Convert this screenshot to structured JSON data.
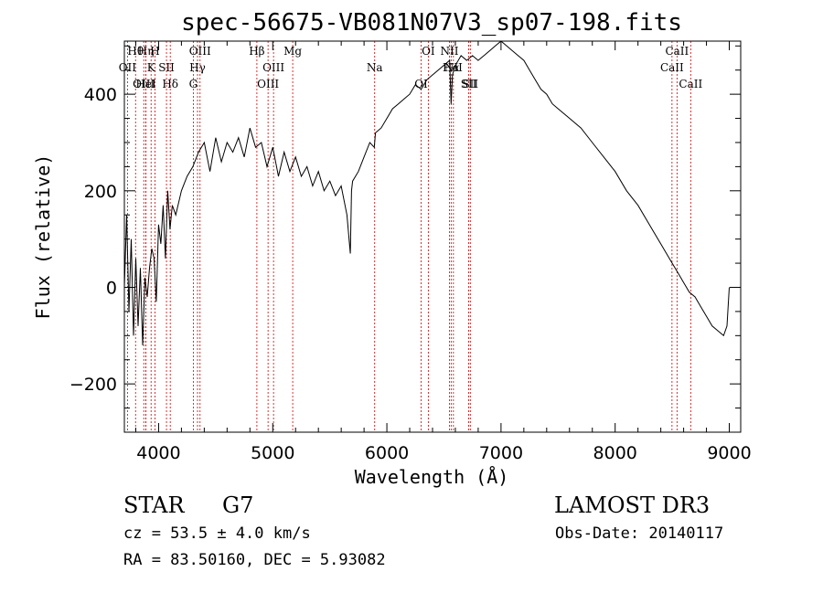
{
  "chart_data": {
    "type": "line",
    "title": "spec-56675-VB081N07V3_sp07-198.fits",
    "xlabel": "Wavelength (Å)",
    "ylabel": "Flux (relative)",
    "xlim": [
      3700,
      9100
    ],
    "ylim": [
      -300,
      510
    ],
    "xticks": [
      4000,
      5000,
      6000,
      7000,
      8000,
      9000
    ],
    "yticks": [
      -200,
      0,
      200,
      400
    ],
    "series": [
      {
        "name": "flux",
        "x": [
          3700,
          3720,
          3740,
          3760,
          3780,
          3800,
          3820,
          3840,
          3860,
          3880,
          3900,
          3920,
          3940,
          3960,
          3980,
          4000,
          4020,
          4040,
          4060,
          4080,
          4100,
          4120,
          4150,
          4200,
          4250,
          4300,
          4350,
          4400,
          4450,
          4500,
          4550,
          4600,
          4650,
          4700,
          4750,
          4800,
          4850,
          4900,
          4950,
          5000,
          5050,
          5100,
          5150,
          5200,
          5250,
          5300,
          5350,
          5400,
          5450,
          5500,
          5550,
          5600,
          5650,
          5680,
          5690,
          5700,
          5750,
          5800,
          5850,
          5890,
          5900,
          5950,
          6000,
          6050,
          6100,
          6150,
          6200,
          6250,
          6300,
          6350,
          6400,
          6450,
          6500,
          6550,
          6563,
          6575,
          6600,
          6650,
          6700,
          6750,
          6800,
          6850,
          6900,
          6950,
          7000,
          7050,
          7100,
          7150,
          7200,
          7250,
          7300,
          7350,
          7400,
          7450,
          7500,
          7600,
          7700,
          7800,
          7900,
          8000,
          8100,
          8200,
          8300,
          8400,
          8500,
          8550,
          8600,
          8650,
          8700,
          8750,
          8800,
          8850,
          8900,
          8950,
          8980,
          9000
        ],
        "values": [
          0,
          150,
          -50,
          100,
          -100,
          60,
          -80,
          40,
          -120,
          20,
          -20,
          40,
          80,
          60,
          -30,
          130,
          90,
          170,
          60,
          200,
          120,
          170,
          150,
          200,
          230,
          250,
          280,
          300,
          240,
          310,
          260,
          300,
          280,
          310,
          270,
          330,
          290,
          300,
          250,
          290,
          230,
          280,
          240,
          270,
          230,
          250,
          210,
          240,
          200,
          220,
          190,
          210,
          150,
          70,
          200,
          220,
          240,
          270,
          300,
          290,
          320,
          330,
          350,
          370,
          380,
          390,
          400,
          420,
          410,
          430,
          440,
          450,
          460,
          470,
          380,
          440,
          460,
          480,
          470,
          480,
          470,
          480,
          490,
          500,
          510,
          500,
          490,
          480,
          470,
          450,
          430,
          410,
          400,
          380,
          370,
          350,
          330,
          300,
          270,
          240,
          200,
          170,
          130,
          90,
          50,
          30,
          10,
          -10,
          -20,
          -40,
          -60,
          -80,
          -90,
          -100,
          -80,
          0
        ]
      }
    ],
    "spectral_lines": [
      {
        "label": "Hθ",
        "wavelength": 3798
      },
      {
        "label": "OII",
        "wavelength": 3727
      },
      {
        "label": "OIII",
        "wavelength": 3870
      },
      {
        "label": "Hη",
        "wavelength": 3889
      },
      {
        "label": "K",
        "wavelength": 3934
      },
      {
        "label": "HeI",
        "wavelength": 3889
      },
      {
        "label": "H",
        "wavelength": 3968
      },
      {
        "label": "SII",
        "wavelength": 4069
      },
      {
        "label": "Hδ",
        "wavelength": 4102
      },
      {
        "label": "OIII",
        "wavelength": 4363
      },
      {
        "label": "Hγ",
        "wavelength": 4341
      },
      {
        "label": "G",
        "wavelength": 4304
      },
      {
        "label": "Hβ",
        "wavelength": 4861
      },
      {
        "label": "OIII",
        "wavelength": 5007
      },
      {
        "label": "OIII",
        "wavelength": 4959
      },
      {
        "label": "Mg",
        "wavelength": 5175
      },
      {
        "label": "Na",
        "wavelength": 5893
      },
      {
        "label": "OI",
        "wavelength": 6300
      },
      {
        "label": "OI",
        "wavelength": 6363
      },
      {
        "label": "Hα",
        "wavelength": 6563
      },
      {
        "label": "SII",
        "wavelength": 6717
      },
      {
        "label": "NII",
        "wavelength": 6548
      },
      {
        "label": "NII",
        "wavelength": 6583
      },
      {
        "label": "SII",
        "wavelength": 6731
      },
      {
        "label": "CaII",
        "wavelength": 8542
      },
      {
        "label": "CaII",
        "wavelength": 8498
      },
      {
        "label": "CaII",
        "wavelength": 8662
      }
    ]
  },
  "info": {
    "class": "STAR",
    "subclass": "G7",
    "survey": "LAMOST DR3",
    "cz": "cz = 53.5 ± 4.0 km/s",
    "obs_date": "Obs-Date: 20140117",
    "coords": "RA =  83.50160, DEC =   5.93082"
  },
  "colors": {
    "line": "#000000",
    "marker": "#cc0000"
  }
}
